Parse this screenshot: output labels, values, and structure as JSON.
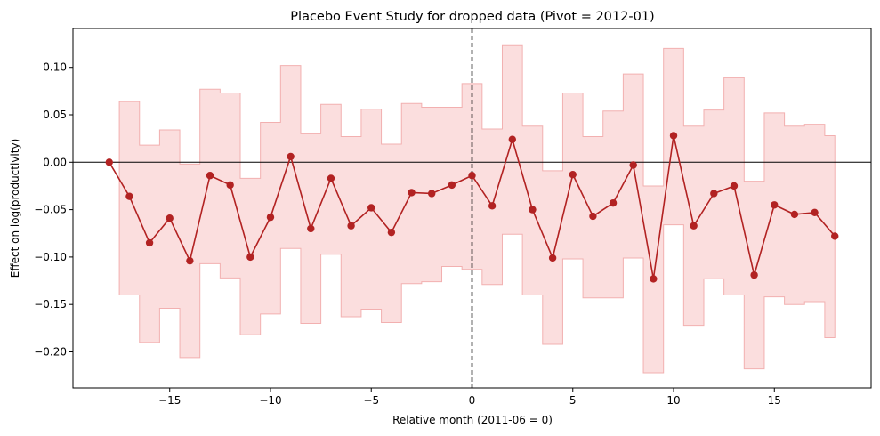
{
  "chart_data": {
    "type": "line",
    "title": "Placebo Event Study for dropped data (Pivot = 2012-01)",
    "xlabel": "Relative month (2011-06 = 0)",
    "ylabel": "Effect on log(productivity)",
    "xlim": [
      -19.8,
      19.8
    ],
    "ylim": [
      -0.238,
      0.141
    ],
    "xticks": [
      -15,
      -10,
      -5,
      0,
      5,
      10,
      15
    ],
    "xtick_labels": [
      "−15",
      "−10",
      "−5",
      "0",
      "5",
      "10",
      "15"
    ],
    "yticks": [
      0.1,
      0.05,
      0.0,
      -0.05,
      -0.1,
      -0.15,
      -0.2
    ],
    "ytick_labels": [
      "0.10",
      "0.05",
      "0.00",
      "−0.05",
      "−0.10",
      "−0.15",
      "−0.20"
    ],
    "grid": false,
    "reference_lines": {
      "horizontal_at": 0,
      "vertical_dashed_at": 0
    },
    "series": [
      {
        "x": [
          -18,
          -17,
          -16,
          -15,
          -14,
          -13,
          -12,
          -11,
          -10,
          -9,
          -8,
          -7,
          -6,
          -5,
          -4,
          -3,
          -2,
          -1,
          0,
          1,
          2,
          3,
          4,
          5,
          6,
          7,
          8,
          9,
          10,
          11,
          12,
          13,
          14,
          15,
          16,
          17,
          18
        ],
        "values": [
          0.0,
          -0.036,
          -0.085,
          -0.059,
          -0.104,
          -0.014,
          -0.024,
          -0.1,
          -0.058,
          0.006,
          -0.07,
          -0.017,
          -0.067,
          -0.048,
          -0.074,
          -0.032,
          -0.033,
          -0.024,
          -0.014,
          -0.046,
          0.024,
          -0.05,
          -0.101,
          -0.013,
          -0.057,
          -0.043,
          -0.003,
          -0.123,
          0.028,
          -0.067,
          -0.033,
          -0.025,
          -0.119,
          -0.045,
          -0.055,
          -0.053,
          -0.078
        ],
        "ci_upper": [
          0.0,
          0.064,
          0.018,
          0.034,
          -0.002,
          0.077,
          0.073,
          -0.017,
          0.042,
          0.102,
          0.03,
          0.061,
          0.027,
          0.056,
          0.019,
          0.062,
          0.058,
          0.058,
          0.083,
          0.035,
          0.123,
          0.038,
          -0.009,
          0.073,
          0.027,
          0.054,
          0.093,
          -0.025,
          0.12,
          0.038,
          0.055,
          0.089,
          -0.02,
          0.052,
          0.038,
          0.04,
          0.028
        ],
        "ci_lower": [
          0.0,
          -0.14,
          -0.19,
          -0.154,
          -0.206,
          -0.107,
          -0.122,
          -0.182,
          -0.16,
          -0.091,
          -0.17,
          -0.097,
          -0.163,
          -0.155,
          -0.169,
          -0.128,
          -0.126,
          -0.11,
          -0.113,
          -0.129,
          -0.076,
          -0.14,
          -0.192,
          -0.102,
          -0.143,
          -0.143,
          -0.101,
          -0.222,
          -0.066,
          -0.172,
          -0.123,
          -0.14,
          -0.218,
          -0.142,
          -0.15,
          -0.147,
          -0.185
        ]
      }
    ],
    "colors": {
      "line": "#b22222",
      "band": "#f8c8c8",
      "band_edge": "#f2b0b0",
      "reference": "#000000"
    }
  }
}
